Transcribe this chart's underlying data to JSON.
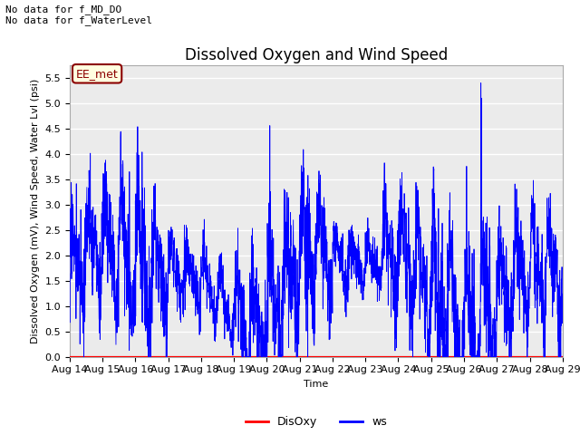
{
  "title": "Dissolved Oxygen and Wind Speed",
  "xlabel": "Time",
  "ylabel": "Dissolved Oxygen (mV), Wind Speed, Water Lvl (psi)",
  "text_top_left": "No data for f_MD_DO\nNo data for f_WaterLevel",
  "legend_label_box": "EE_met",
  "ylim": [
    0.0,
    5.75
  ],
  "yticks": [
    0.0,
    0.5,
    1.0,
    1.5,
    2.0,
    2.5,
    3.0,
    3.5,
    4.0,
    4.5,
    5.0,
    5.5
  ],
  "xtick_labels": [
    "Aug 14",
    "Aug 15",
    "Aug 16",
    "Aug 17",
    "Aug 18",
    "Aug 19",
    "Aug 20",
    "Aug 21",
    "Aug 22",
    "Aug 23",
    "Aug 24",
    "Aug 25",
    "Aug 26",
    "Aug 27",
    "Aug 28",
    "Aug 29"
  ],
  "line_disoxy_color": "red",
  "line_ws_color": "blue",
  "bg_color": "#ebebeb",
  "grid_color": "white",
  "title_fontsize": 12,
  "label_fontsize": 8,
  "tick_fontsize": 8,
  "seed": 17,
  "n_points": 3000
}
